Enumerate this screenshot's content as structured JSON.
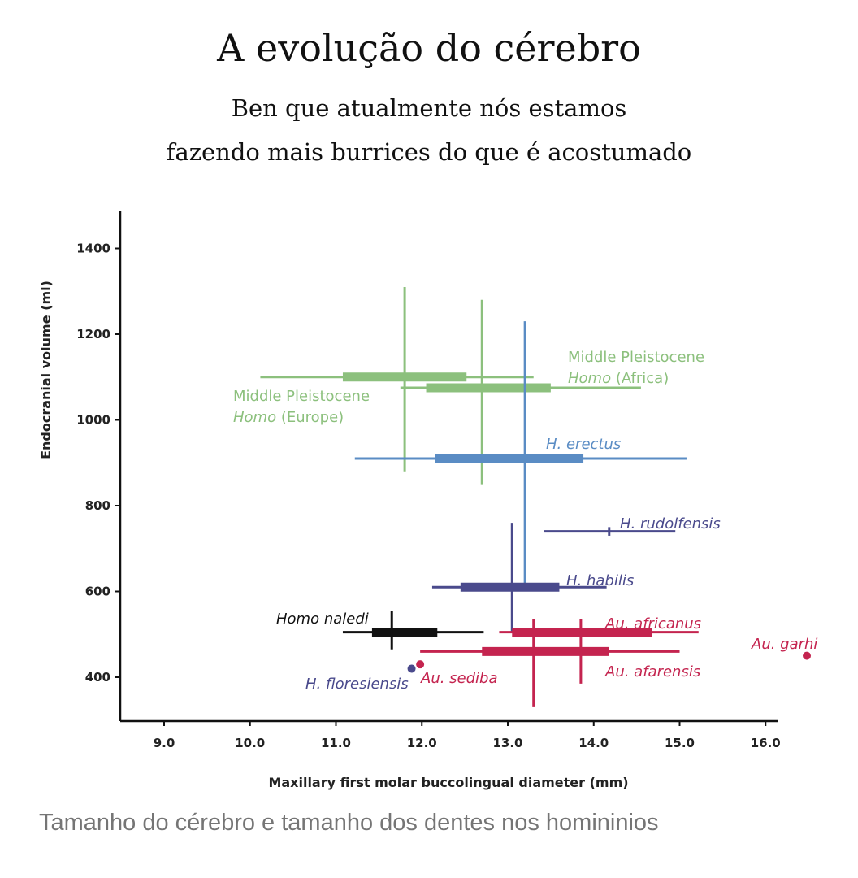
{
  "header": {
    "title": "A evolução do cérebro",
    "subtitle_line1": "Ben que atualmente nós estamos",
    "subtitle_line2": "fazendo mais burrices do que é acostumado"
  },
  "caption": "Tamanho do cérebro e tamanho dos dentes nos homininios",
  "chart_data": {
    "type": "scatter",
    "xlabel": "Maxillary first molar buccolingual diameter (mm)",
    "ylabel": "Endocranial volume (ml)",
    "xlim": [
      8.5,
      16.2
    ],
    "ylim": [
      300,
      1490
    ],
    "xticks": [
      9.0,
      10.0,
      11.0,
      12.0,
      13.0,
      14.0,
      15.0,
      16.0
    ],
    "yticks": [
      400,
      600,
      800,
      1000,
      1200,
      1400
    ],
    "colors": {
      "green": "#8cc07d",
      "blue": "#5a8cc4",
      "indigo": "#4a4a8c",
      "black": "#111111",
      "crimson": "#c4244f"
    },
    "series": [
      {
        "name": "Middle Pleistocene",
        "name2": "Homo",
        "name3": "(Europe)",
        "color": "green",
        "x_range": [
          10.12,
          13.3
        ],
        "x_iqr": [
          11.08,
          12.52
        ],
        "x_mean": 11.8,
        "y_range": [
          880,
          1310
        ],
        "y_mean": 1100
      },
      {
        "name": "Middle Pleistocene",
        "name2": "Homo",
        "name3": "(Africa)",
        "color": "green",
        "x_range": [
          11.75,
          14.55
        ],
        "x_iqr": [
          12.05,
          13.5
        ],
        "x_mean": 12.7,
        "y_range": [
          850,
          1280
        ],
        "y_mean": 1075
      },
      {
        "name": "H. erectus",
        "color": "blue",
        "x_range": [
          11.22,
          15.08
        ],
        "x_iqr": [
          12.15,
          13.88
        ],
        "x_mean": 13.2,
        "y_range": [
          600,
          1230
        ],
        "y_mean": 910
      },
      {
        "name": "H. rudolfensis",
        "color": "indigo",
        "x_range": [
          13.42,
          14.95
        ],
        "x_mean": 14.18,
        "y_range": [
          730,
          750
        ],
        "y_mean": 740
      },
      {
        "name": "H. habilis",
        "color": "indigo",
        "x_range": [
          12.12,
          14.15
        ],
        "x_iqr": [
          12.45,
          13.6
        ],
        "x_mean": 13.05,
        "y_range": [
          505,
          760
        ],
        "y_mean": 610
      },
      {
        "name": "Homo naledi",
        "color": "black",
        "x_range": [
          11.08,
          12.72
        ],
        "x_iqr": [
          11.42,
          12.18
        ],
        "x_mean": 11.65,
        "y_range": [
          465,
          555
        ],
        "y_mean": 505
      },
      {
        "name": "Au. africanus",
        "color": "crimson",
        "x_range": [
          12.9,
          15.22
        ],
        "x_iqr": [
          13.05,
          14.68
        ],
        "x_mean": 13.85,
        "y_range": [
          385,
          535
        ],
        "y_mean": 505
      },
      {
        "name": "Au. afarensis",
        "color": "crimson",
        "x_range": [
          11.98,
          15.0
        ],
        "x_iqr": [
          12.7,
          14.18
        ],
        "x_mean": 13.3,
        "y_range": [
          330,
          535
        ],
        "y_mean": 460
      },
      {
        "name": "H. floresiensis",
        "color": "indigo",
        "point": [
          11.88,
          420
        ]
      },
      {
        "name": "Au. sediba",
        "color": "crimson",
        "point": [
          11.98,
          430
        ]
      },
      {
        "name": "Au. garhi",
        "color": "crimson",
        "point": [
          16.48,
          450
        ]
      }
    ]
  }
}
